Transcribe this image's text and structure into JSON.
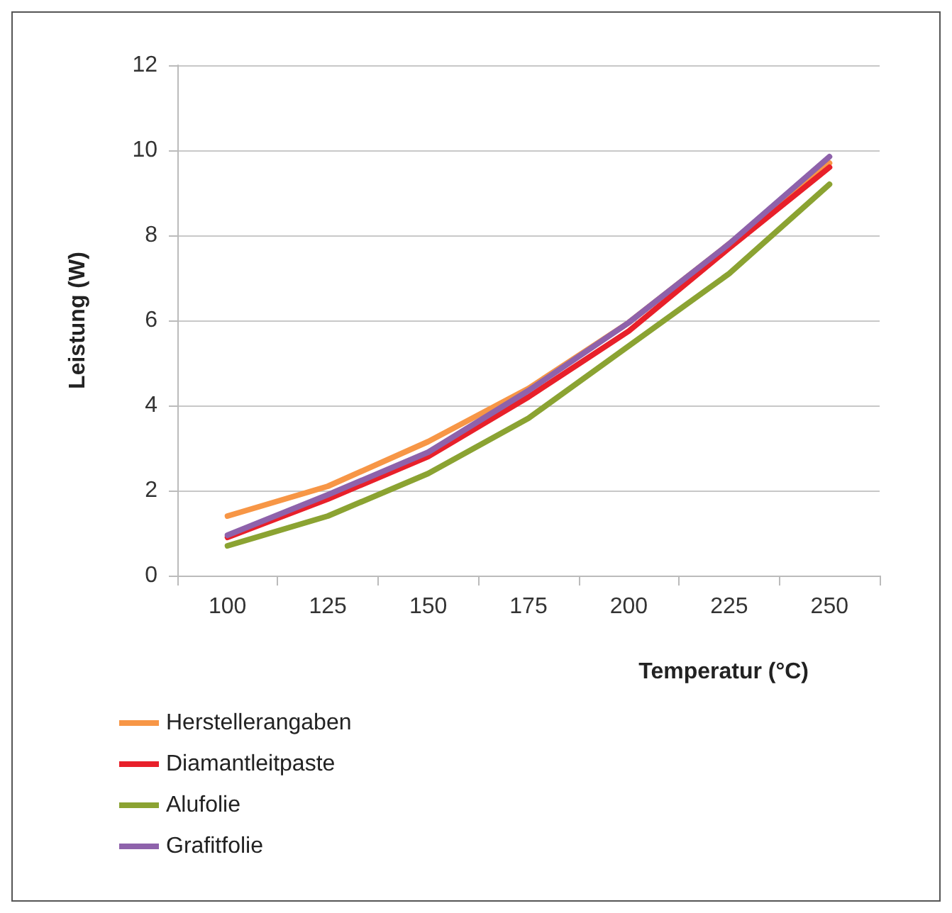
{
  "chart_data": {
    "type": "line",
    "xlabel": "Temperatur (°C)",
    "ylabel": "Leistung (W)",
    "categories": [
      "100",
      "125",
      "150",
      "175",
      "200",
      "225",
      "250"
    ],
    "ylim": [
      0,
      12
    ],
    "yticks": [
      0,
      2,
      4,
      6,
      8,
      10,
      12
    ],
    "grid": "y",
    "legend": "bottom left",
    "marker": "none",
    "line_style": "solid",
    "series": [
      {
        "name": "Herstellerangaben",
        "color": "#f79646",
        "values": [
          1.4,
          2.1,
          3.15,
          4.4,
          5.95,
          7.8,
          9.7
        ]
      },
      {
        "name": "Diamantleitpaste",
        "color": "#e8202a",
        "values": [
          0.9,
          1.8,
          2.8,
          4.2,
          5.75,
          7.7,
          9.6
        ]
      },
      {
        "name": "Alufolie",
        "color": "#8ba332",
        "values": [
          0.7,
          1.4,
          2.4,
          3.7,
          5.4,
          7.1,
          9.2
        ]
      },
      {
        "name": "Grafitfolie",
        "color": "#8e62ab",
        "values": [
          0.95,
          1.9,
          2.9,
          4.35,
          5.95,
          7.8,
          9.85
        ]
      }
    ]
  }
}
